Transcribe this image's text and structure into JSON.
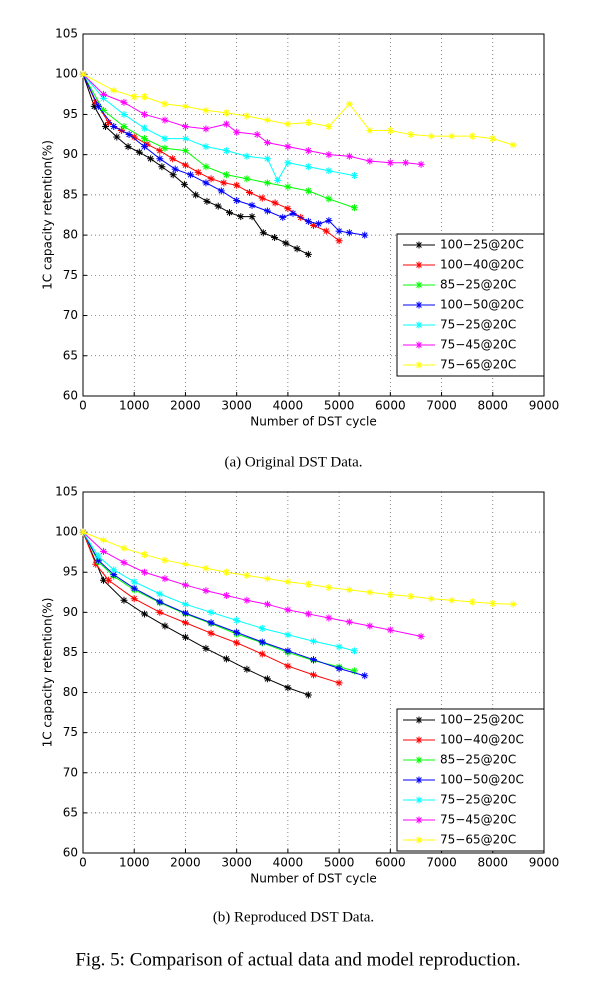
{
  "chart_data": [
    {
      "type": "line",
      "caption": "(a) Original DST Data.",
      "xlabel": "Number of DST cycle",
      "ylabel": "1C capacity retention(%)",
      "xlim": [
        0,
        9000
      ],
      "ylim": [
        60,
        105
      ],
      "xticks": [
        0,
        1000,
        2000,
        3000,
        4000,
        5000,
        6000,
        7000,
        8000,
        9000
      ],
      "yticks": [
        60,
        65,
        70,
        75,
        80,
        85,
        90,
        95,
        100,
        105
      ],
      "grid": true,
      "legend": "lower right",
      "series": [
        {
          "name": "100−25@20C",
          "color": "#000000",
          "x": [
            0,
            220,
            440,
            660,
            880,
            1100,
            1320,
            1540,
            1760,
            1980,
            2200,
            2420,
            2640,
            2860,
            3080,
            3300,
            3520,
            3740,
            3960,
            4180,
            4400
          ],
          "values": [
            100,
            96,
            93.5,
            92.2,
            91,
            90.3,
            89.5,
            88.5,
            87.5,
            86.3,
            85,
            84.2,
            83.6,
            82.8,
            82.3,
            82.3,
            80.3,
            79.7,
            79,
            78.3,
            77.6
          ]
        },
        {
          "name": "100−40@20C",
          "color": "#ff0000",
          "x": [
            0,
            250,
            500,
            750,
            1000,
            1250,
            1500,
            1750,
            2000,
            2250,
            2500,
            2750,
            3000,
            3250,
            3500,
            3750,
            4000,
            4250,
            4500,
            4750,
            5000
          ],
          "values": [
            100,
            96.5,
            94,
            93,
            92.2,
            91.3,
            90.5,
            89.5,
            88.7,
            87.8,
            87,
            86.5,
            86.2,
            85.3,
            84.6,
            84,
            83.3,
            82.2,
            81.2,
            80.5,
            79.3
          ]
        },
        {
          "name": "85−25@20C",
          "color": "#00ff00",
          "x": [
            0,
            400,
            800,
            1200,
            1600,
            2000,
            2400,
            2800,
            3200,
            3600,
            4000,
            4400,
            4800,
            5300
          ],
          "values": [
            100,
            95.5,
            93.5,
            92,
            90.8,
            90.5,
            88.5,
            87.5,
            87,
            86.5,
            86,
            85.5,
            84.5,
            83.4
          ]
        },
        {
          "name": "100−50@20C",
          "color": "#0000ff",
          "x": [
            0,
            300,
            600,
            900,
            1200,
            1500,
            1800,
            2100,
            2400,
            2700,
            3000,
            3300,
            3600,
            3900,
            4100,
            4400,
            4600,
            4800,
            5000,
            5200,
            5500
          ],
          "values": [
            100,
            96,
            93.5,
            92.5,
            91,
            89.5,
            88.2,
            87.5,
            86.5,
            85.5,
            84.3,
            83.7,
            83,
            82.2,
            82.7,
            81.7,
            81.4,
            81.8,
            80.5,
            80.3,
            80
          ]
        },
        {
          "name": "75−25@20C",
          "color": "#00ffff",
          "x": [
            0,
            400,
            800,
            1200,
            1600,
            2000,
            2400,
            2800,
            3200,
            3600,
            3800,
            4000,
            4400,
            4800,
            5300
          ],
          "values": [
            100,
            97,
            95,
            93.3,
            92,
            92,
            91,
            90.5,
            89.8,
            89.5,
            86.8,
            89,
            88.5,
            88,
            87.4
          ]
        },
        {
          "name": "75−45@20C",
          "color": "#ff00ff",
          "x": [
            0,
            400,
            800,
            1200,
            1600,
            2000,
            2400,
            2800,
            3000,
            3400,
            3600,
            4000,
            4400,
            4800,
            5200,
            5600,
            6000,
            6300,
            6600
          ],
          "values": [
            100,
            97.5,
            96.5,
            95,
            94.3,
            93.5,
            93.2,
            93.8,
            92.8,
            92.5,
            91.5,
            91,
            90.5,
            90,
            89.8,
            89.2,
            89,
            89,
            88.8
          ]
        },
        {
          "name": "75−65@20C",
          "color": "#ffff00",
          "x": [
            0,
            600,
            1000,
            1200,
            1600,
            2000,
            2400,
            2800,
            3200,
            3600,
            4000,
            4400,
            4800,
            5200,
            5600,
            6000,
            6400,
            6800,
            7200,
            7600,
            8000,
            8400
          ],
          "values": [
            100,
            98,
            97.2,
            97.2,
            96.3,
            96,
            95.5,
            95.2,
            94.8,
            94.3,
            93.8,
            94,
            93.5,
            96.3,
            93,
            93,
            92.5,
            92.3,
            92.3,
            92.3,
            92,
            91.2
          ]
        }
      ]
    },
    {
      "type": "line",
      "caption": "(b) Reproduced DST Data.",
      "xlabel": "Number of DST cycle",
      "ylabel": "1C capacity retention(%)",
      "xlim": [
        0,
        9000
      ],
      "ylim": [
        60,
        105
      ],
      "xticks": [
        0,
        1000,
        2000,
        3000,
        4000,
        5000,
        6000,
        7000,
        8000,
        9000
      ],
      "yticks": [
        60,
        65,
        70,
        75,
        80,
        85,
        90,
        95,
        100,
        105
      ],
      "grid": true,
      "legend": "lower right",
      "series": [
        {
          "name": "100−25@20C",
          "color": "#000000",
          "x": [
            0,
            400,
            800,
            1200,
            1600,
            2000,
            2400,
            2800,
            3200,
            3600,
            4000,
            4400
          ],
          "values": [
            100,
            94,
            91.5,
            89.8,
            88.3,
            86.9,
            85.5,
            84.2,
            82.9,
            81.7,
            80.6,
            79.7
          ]
        },
        {
          "name": "100−40@20C",
          "color": "#ff0000",
          "x": [
            0,
            250,
            500,
            1000,
            1500,
            2000,
            2500,
            3000,
            3500,
            4000,
            4500,
            5000
          ],
          "values": [
            100,
            96,
            94,
            91.7,
            90,
            88.7,
            87.4,
            86.2,
            84.8,
            83.3,
            82.2,
            81.2
          ]
        },
        {
          "name": "85−25@20C",
          "color": "#00ff00",
          "x": [
            0,
            300,
            600,
            1000,
            1500,
            2000,
            2500,
            3000,
            3500,
            4000,
            4500,
            5000,
            5300
          ],
          "values": [
            100,
            96.3,
            94.5,
            92.8,
            91.2,
            89.8,
            88.6,
            87.3,
            86.2,
            85,
            84,
            83.2,
            82.7
          ]
        },
        {
          "name": "100−50@20C",
          "color": "#0000ff",
          "x": [
            0,
            300,
            600,
            1000,
            1500,
            2000,
            2500,
            3000,
            3500,
            4000,
            4500,
            5000,
            5500
          ],
          "values": [
            100,
            96.5,
            94.7,
            93,
            91.3,
            89.9,
            88.7,
            87.5,
            86.3,
            85.2,
            84.1,
            83,
            82.1
          ]
        },
        {
          "name": "75−25@20C",
          "color": "#00ffff",
          "x": [
            0,
            300,
            600,
            1000,
            1500,
            2000,
            2500,
            3000,
            3500,
            4000,
            4500,
            5000,
            5300
          ],
          "values": [
            100,
            97,
            95.3,
            93.8,
            92.3,
            91,
            90,
            89,
            88,
            87.2,
            86.4,
            85.7,
            85.2
          ]
        },
        {
          "name": "75−45@20C",
          "color": "#ff00ff",
          "x": [
            0,
            400,
            800,
            1200,
            1600,
            2000,
            2400,
            2800,
            3200,
            3600,
            4000,
            4400,
            4800,
            5200,
            5600,
            6000,
            6600
          ],
          "values": [
            100,
            97.6,
            96.2,
            95,
            94.2,
            93.4,
            92.7,
            92.1,
            91.5,
            91,
            90.3,
            89.8,
            89.3,
            88.8,
            88.3,
            87.8,
            87
          ]
        },
        {
          "name": "75−65@20C",
          "color": "#ffff00",
          "x": [
            0,
            400,
            800,
            1200,
            1600,
            2000,
            2400,
            2800,
            3200,
            3600,
            4000,
            4400,
            4800,
            5200,
            5600,
            6000,
            6400,
            6800,
            7200,
            7600,
            8000,
            8400
          ],
          "values": [
            100,
            99,
            98,
            97.2,
            96.5,
            96,
            95.5,
            95,
            94.6,
            94.2,
            93.8,
            93.5,
            93.1,
            92.8,
            92.5,
            92.2,
            92,
            91.7,
            91.5,
            91.3,
            91.1,
            91
          ]
        }
      ]
    }
  ],
  "caption": "Fig. 5: Comparison of actual data and model reproduction."
}
